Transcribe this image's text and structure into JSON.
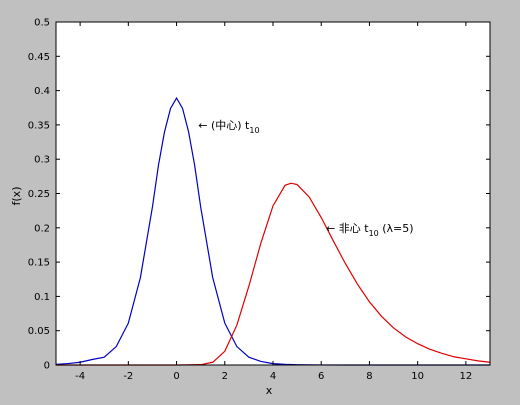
{
  "chart_data": {
    "type": "line",
    "xlabel": "x",
    "ylabel": "f(x)",
    "xlim": [
      -5,
      13
    ],
    "ylim": [
      0,
      0.5
    ],
    "xticks": [
      -4,
      -2,
      0,
      2,
      4,
      6,
      8,
      10,
      12
    ],
    "xtick_labels": [
      "-4",
      "-2",
      "0",
      "2",
      "4",
      "6",
      "8",
      "10",
      "12"
    ],
    "yticks": [
      0,
      0.05,
      0.1,
      0.15,
      0.2,
      0.25,
      0.3,
      0.35,
      0.4,
      0.45,
      0.5
    ],
    "ytick_labels": [
      "0",
      "0.05",
      "0.1",
      "0.15",
      "0.2",
      "0.25",
      "0.3",
      "0.35",
      "0.4",
      "0.45",
      "0.5"
    ],
    "grid": false,
    "series": [
      {
        "color": "#0000c0",
        "x": [
          -5,
          -4.5,
          -4,
          -3.5,
          -3,
          -2.5,
          -2,
          -1.5,
          -1,
          -0.75,
          -0.5,
          -0.25,
          0,
          0.25,
          0.5,
          0.75,
          1,
          1.5,
          2,
          2.5,
          3,
          3.5,
          4,
          4.5,
          5,
          6,
          7,
          8,
          9,
          10,
          11,
          12,
          13
        ],
        "y": [
          0.001,
          0.0021,
          0.004,
          0.008,
          0.0114,
          0.0269,
          0.0611,
          0.1274,
          0.2304,
          0.2913,
          0.3397,
          0.374,
          0.3891,
          0.374,
          0.3397,
          0.2913,
          0.2304,
          0.1274,
          0.0611,
          0.0269,
          0.0114,
          0.0052,
          0.002,
          0.0009,
          0.0004,
          0.0001,
          0.0,
          0.0,
          0.0,
          0.0,
          0.0,
          0.0,
          0.0
        ]
      },
      {
        "color": "#e00000",
        "x": [
          -5,
          -2,
          0,
          1,
          1.5,
          2,
          2.5,
          3,
          3.5,
          4,
          4.5,
          4.75,
          5,
          5.5,
          6,
          6.5,
          7,
          7.5,
          8,
          8.5,
          9,
          9.5,
          10,
          10.5,
          11,
          11.5,
          12,
          12.5,
          13
        ],
        "y": [
          0.0,
          0.0,
          0.0,
          0.0005,
          0.004,
          0.02,
          0.058,
          0.115,
          0.178,
          0.232,
          0.262,
          0.265,
          0.263,
          0.245,
          0.215,
          0.181,
          0.148,
          0.118,
          0.092,
          0.071,
          0.054,
          0.041,
          0.031,
          0.023,
          0.017,
          0.012,
          0.009,
          0.006,
          0.004
        ]
      }
    ],
    "annotations": [
      {
        "arrow": "←",
        "text": "(中心) t",
        "sub": "10",
        "rest": "",
        "x": 0.9,
        "y": 0.35
      },
      {
        "arrow": "←",
        "text": "非心 t",
        "sub": "10",
        "rest": " (λ=5)",
        "x": 6.2,
        "y": 0.2
      }
    ]
  }
}
